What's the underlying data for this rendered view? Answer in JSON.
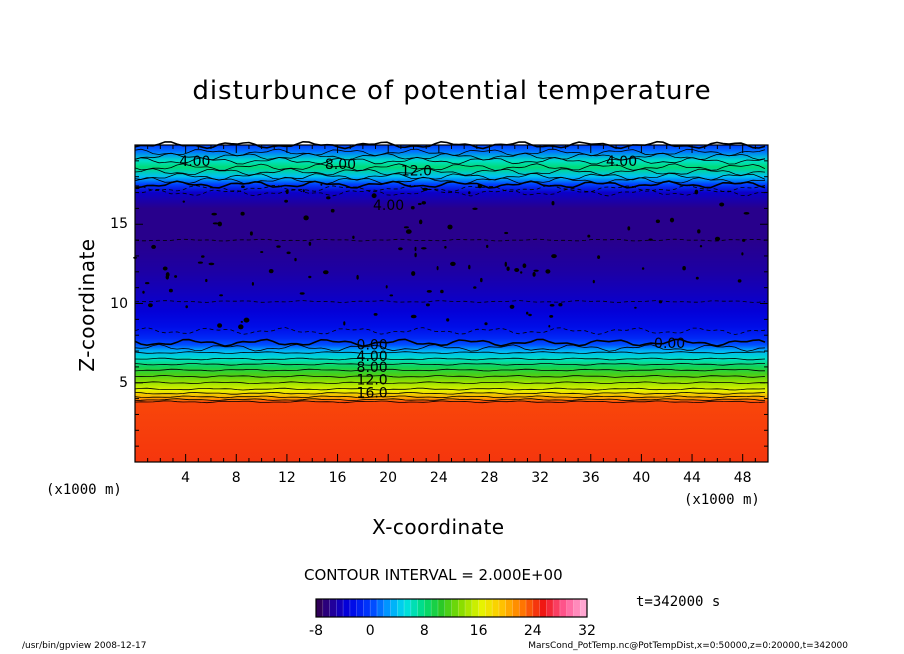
{
  "chart_data": {
    "type": "heatmap",
    "title": "disturbunce of potential temperature",
    "xlabel": "X-coordinate",
    "ylabel": "Z-coordinate",
    "x_unit_label": "(x1000 m)",
    "xlim": [
      0,
      50
    ],
    "ylim": [
      0,
      20
    ],
    "x_ticks": [
      "4",
      "8",
      "12",
      "16",
      "20",
      "24",
      "28",
      "32",
      "36",
      "40",
      "44",
      "48"
    ],
    "x_tick_values": [
      4,
      8,
      12,
      16,
      20,
      24,
      28,
      32,
      36,
      40,
      44,
      48
    ],
    "y_ticks": [
      "5",
      "10",
      "15"
    ],
    "y_tick_values": [
      5,
      10,
      15
    ],
    "contour_interval_label": "CONTOUR INTERVAL = 2.000E+00",
    "time_label": "t=342000 s",
    "colorbar": {
      "range": [
        -8,
        32
      ],
      "tick_labels": [
        "-8",
        "0",
        "8",
        "16",
        "24",
        "32"
      ],
      "tick_values": [
        -8,
        0,
        8,
        16,
        24,
        32
      ]
    },
    "vertical_profile": [
      {
        "z": 0.0,
        "value": 24.5
      },
      {
        "z": 3.8,
        "value": 24.0
      },
      {
        "z": 4.0,
        "value": 21.0
      },
      {
        "z": 4.5,
        "value": 16.5
      },
      {
        "z": 5.0,
        "value": 14.0
      },
      {
        "z": 5.5,
        "value": 11.5
      },
      {
        "z": 6.0,
        "value": 9.0
      },
      {
        "z": 6.5,
        "value": 6.0
      },
      {
        "z": 7.0,
        "value": 3.5
      },
      {
        "z": 7.4,
        "value": 0.5
      },
      {
        "z": 7.8,
        "value": -1.0
      },
      {
        "z": 8.5,
        "value": -2.5
      },
      {
        "z": 9.5,
        "value": -3.5
      },
      {
        "z": 10.5,
        "value": -4.3
      },
      {
        "z": 12.0,
        "value": -5.2
      },
      {
        "z": 14.0,
        "value": -6.0
      },
      {
        "z": 16.0,
        "value": -6.0
      },
      {
        "z": 17.0,
        "value": -4.0
      },
      {
        "z": 17.5,
        "value": 0.0
      },
      {
        "z": 18.0,
        "value": 4.0
      },
      {
        "z": 18.6,
        "value": 8.0
      },
      {
        "z": 19.0,
        "value": 6.0
      },
      {
        "z": 19.6,
        "value": 1.5
      },
      {
        "z": 20.0,
        "value": 0.0
      }
    ],
    "contour_labels": [
      {
        "text": "4.00",
        "x": 3.5,
        "z": 19.0
      },
      {
        "text": "8.00",
        "x": 15.0,
        "z": 18.8
      },
      {
        "text": "12.0",
        "x": 21.0,
        "z": 18.4
      },
      {
        "text": "4.00",
        "x": 37.2,
        "z": 19.0
      },
      {
        "text": "4.00",
        "x": 18.8,
        "z": 16.2
      },
      {
        "text": "0.00",
        "x": 17.5,
        "z": 7.4
      },
      {
        "text": "4.00",
        "x": 17.5,
        "z": 6.7
      },
      {
        "text": "8.00",
        "x": 17.5,
        "z": 6.0
      },
      {
        "text": "12.0",
        "x": 17.5,
        "z": 5.2
      },
      {
        "text": "16.0",
        "x": 17.5,
        "z": 4.4
      },
      {
        "text": "0.00",
        "x": 41.0,
        "z": 7.5
      }
    ]
  },
  "footer_left": "/usr/bin/gpview  2008-12-17",
  "footer_right": "MarsCond_PotTemp.nc@PotTempDist,x=0:50000,z=0:20000,t=342000"
}
